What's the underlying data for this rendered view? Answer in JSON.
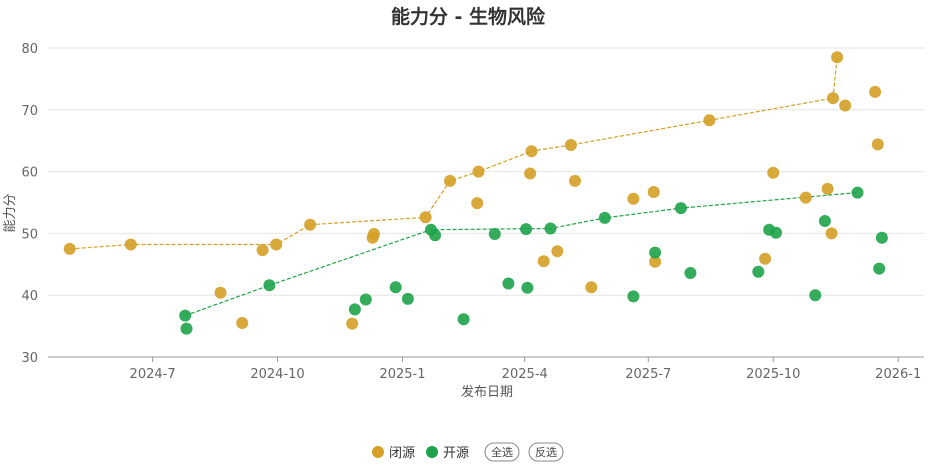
{
  "chart_data": {
    "type": "scatter",
    "title": "能力分 - 生物风险",
    "xlabel": "发布日期",
    "ylabel": "能力分",
    "ylim": [
      30,
      80
    ],
    "yticks": [
      30,
      40,
      50,
      60,
      70,
      80
    ],
    "xlim": [
      "2024-04-15",
      "2026-01-20"
    ],
    "xticks": [
      {
        "date": "2024-07-01",
        "label": "2024-7"
      },
      {
        "date": "2024-10-01",
        "label": "2024-10"
      },
      {
        "date": "2025-01-01",
        "label": "2025-1"
      },
      {
        "date": "2025-04-01",
        "label": "2025-4"
      },
      {
        "date": "2025-07-01",
        "label": "2025-7"
      },
      {
        "date": "2025-10-01",
        "label": "2025-10"
      },
      {
        "date": "2026-01-01",
        "label": "2026-1"
      }
    ],
    "grid": "horizontal",
    "legend_position": "bottom-center",
    "series": [
      {
        "name": "闭源",
        "color": "#d4a025",
        "points": [
          [
            "2024-05-01",
            47.5
          ],
          [
            "2024-06-15",
            48.2
          ],
          [
            "2024-08-20",
            40.4
          ],
          [
            "2024-09-05",
            35.5
          ],
          [
            "2024-09-20",
            47.3
          ],
          [
            "2024-09-30",
            48.2
          ],
          [
            "2024-10-25",
            51.4
          ],
          [
            "2024-11-25",
            35.4
          ],
          [
            "2024-12-10",
            49.3
          ],
          [
            "2024-12-11",
            49.9
          ],
          [
            "2025-01-18",
            52.6
          ],
          [
            "2025-02-05",
            58.5
          ],
          [
            "2025-02-25",
            54.9
          ],
          [
            "2025-02-26",
            60.0
          ],
          [
            "2025-04-05",
            59.7
          ],
          [
            "2025-04-06",
            63.3
          ],
          [
            "2025-04-15",
            45.5
          ],
          [
            "2025-04-25",
            47.1
          ],
          [
            "2025-05-05",
            64.3
          ],
          [
            "2025-05-08",
            58.5
          ],
          [
            "2025-05-20",
            41.3
          ],
          [
            "2025-06-20",
            55.6
          ],
          [
            "2025-07-05",
            56.7
          ],
          [
            "2025-07-06",
            45.4
          ],
          [
            "2025-08-15",
            68.3
          ],
          [
            "2025-09-25",
            45.9
          ],
          [
            "2025-10-01",
            59.8
          ],
          [
            "2025-10-25",
            55.8
          ],
          [
            "2025-11-10",
            57.2
          ],
          [
            "2025-11-13",
            50.0
          ],
          [
            "2025-11-14",
            71.9
          ],
          [
            "2025-11-17",
            78.5
          ],
          [
            "2025-11-23",
            70.7
          ],
          [
            "2025-12-15",
            72.9
          ],
          [
            "2025-12-17",
            64.4
          ]
        ],
        "frontier": [
          [
            "2024-05-01",
            47.5
          ],
          [
            "2024-06-15",
            48.2
          ],
          [
            "2024-09-30",
            48.2
          ],
          [
            "2024-10-25",
            51.4
          ],
          [
            "2025-01-18",
            52.6
          ],
          [
            "2025-02-05",
            58.5
          ],
          [
            "2025-02-26",
            60.0
          ],
          [
            "2025-04-06",
            63.3
          ],
          [
            "2025-05-05",
            64.3
          ],
          [
            "2025-08-15",
            68.3
          ],
          [
            "2025-11-14",
            71.9
          ],
          [
            "2025-11-17",
            78.5
          ]
        ]
      },
      {
        "name": "开源",
        "color": "#1ea34a",
        "points": [
          [
            "2024-07-25",
            36.7
          ],
          [
            "2024-07-26",
            34.6
          ],
          [
            "2024-09-25",
            41.6
          ],
          [
            "2024-11-27",
            37.7
          ],
          [
            "2024-12-05",
            39.3
          ],
          [
            "2024-12-27",
            41.3
          ],
          [
            "2025-01-05",
            39.4
          ],
          [
            "2025-01-22",
            50.6
          ],
          [
            "2025-01-25",
            49.7
          ],
          [
            "2025-02-15",
            36.1
          ],
          [
            "2025-03-10",
            49.9
          ],
          [
            "2025-03-20",
            41.9
          ],
          [
            "2025-04-02",
            50.7
          ],
          [
            "2025-04-03",
            41.2
          ],
          [
            "2025-04-20",
            50.8
          ],
          [
            "2025-05-30",
            52.5
          ],
          [
            "2025-06-20",
            39.8
          ],
          [
            "2025-07-06",
            46.9
          ],
          [
            "2025-07-25",
            54.1
          ],
          [
            "2025-08-01",
            43.6
          ],
          [
            "2025-09-20",
            43.8
          ],
          [
            "2025-09-28",
            50.6
          ],
          [
            "2025-10-03",
            50.1
          ],
          [
            "2025-11-01",
            40.0
          ],
          [
            "2025-11-08",
            52.0
          ],
          [
            "2025-12-02",
            56.6
          ],
          [
            "2025-12-18",
            44.3
          ],
          [
            "2025-12-20",
            49.3
          ]
        ],
        "frontier": [
          [
            "2024-07-25",
            36.7
          ],
          [
            "2024-09-25",
            41.6
          ],
          [
            "2025-01-22",
            50.6
          ],
          [
            "2025-04-20",
            50.8
          ],
          [
            "2025-05-30",
            52.5
          ],
          [
            "2025-07-25",
            54.1
          ],
          [
            "2025-12-02",
            56.6
          ]
        ]
      }
    ]
  },
  "controls": {
    "select_all_label": "全选",
    "invert_label": "反选"
  }
}
